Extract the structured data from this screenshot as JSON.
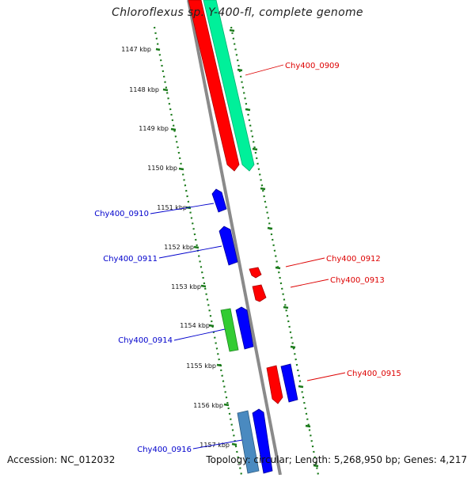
{
  "title": "Chloroflexus sp. Y-400-fl, complete genome",
  "footer": {
    "accession": "Accession: NC_012032",
    "info": "Topology: circular; Length: 5,268,950 bp; Genes: 4,217"
  },
  "colors": {
    "backbone": "#8a8a8a",
    "ticks": "#1a7a1a",
    "label_blue": "#0000cc",
    "label_red": "#dd0000",
    "feature_red": "#ff0000",
    "feature_blue": "#0000ff",
    "feature_teal": "#00f09a",
    "feature_green": "#33cc33",
    "feature_steel": "#4a8ac0"
  },
  "ruler": {
    "ticks": [
      "1147 kbp",
      "1148 kbp",
      "1149 kbp",
      "1150 kbp",
      "1151 kbp",
      "1152 kbp",
      "1153 kbp",
      "1154 kbp",
      "1155 kbp",
      "1156 kbp",
      "1157 kbp"
    ]
  },
  "genes": {
    "chy0909": "Chy400_0909",
    "chy0910": "Chy400_0910",
    "chy0911": "Chy400_0911",
    "chy0912": "Chy400_0912",
    "chy0913": "Chy400_0913",
    "chy0914": "Chy400_0914",
    "chy0915": "Chy400_0915",
    "chy0916": "Chy400_0916"
  }
}
